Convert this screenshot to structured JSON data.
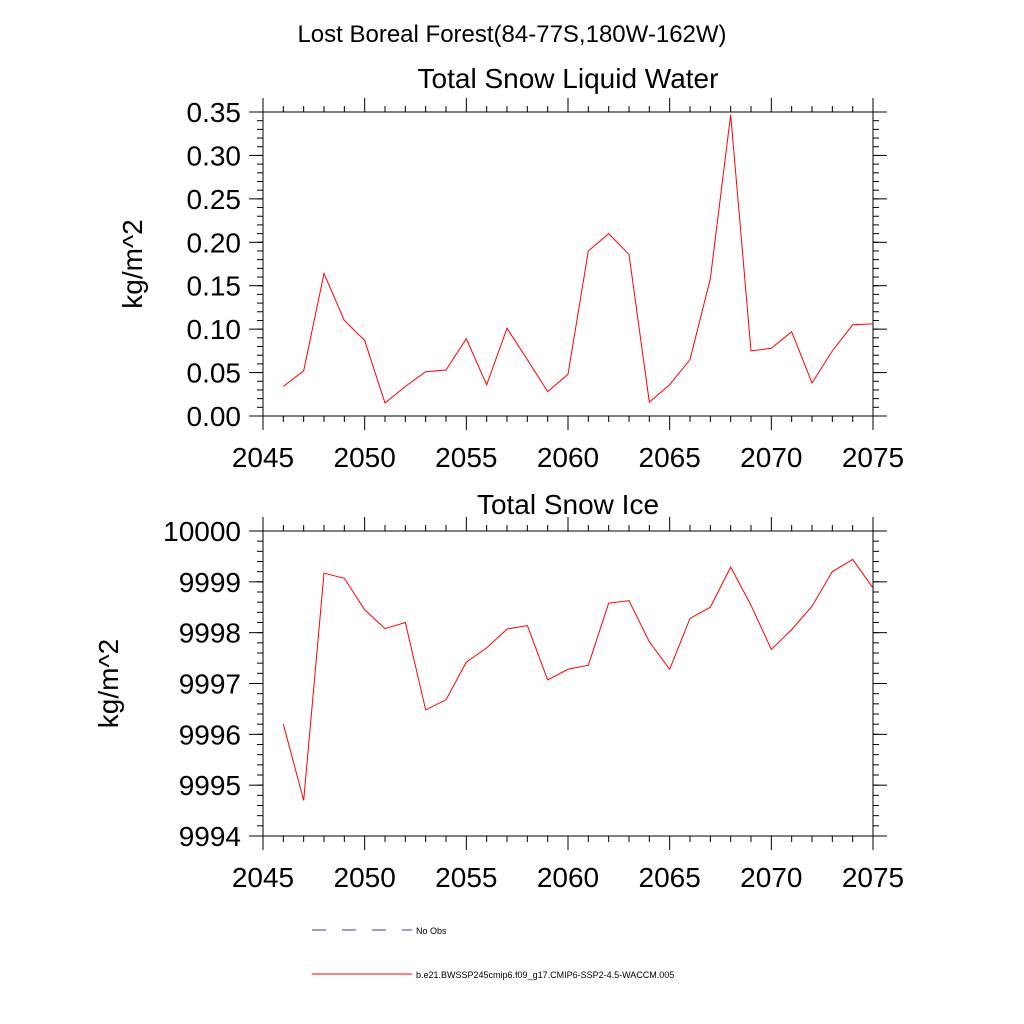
{
  "suptitle": "Lost Boreal Forest(84-77S,180W-162W)",
  "colors": {
    "model": "#ff0000",
    "obs": "#3c3c9c",
    "axis": "#000000"
  },
  "chart_data": [
    {
      "type": "line",
      "title": "Total Snow Liquid Water",
      "xlabel": "",
      "ylabel": "kg/m^2",
      "xlim": [
        2045,
        2075
      ],
      "ylim": [
        0,
        0.35
      ],
      "xticks": [
        2045,
        2050,
        2055,
        2060,
        2065,
        2070,
        2075
      ],
      "xtick_labels": [
        "2045",
        "2050",
        "2055",
        "2060",
        "2065",
        "2070",
        "2075"
      ],
      "yticks": [
        0,
        0.05,
        0.1,
        0.15,
        0.2,
        0.25,
        0.3,
        0.35
      ],
      "ytick_labels": [
        "0.00",
        "0.05",
        "0.10",
        "0.15",
        "0.20",
        "0.25",
        "0.30",
        "0.35"
      ],
      "x": [
        2046,
        2047,
        2048,
        2049,
        2050,
        2051,
        2052,
        2053,
        2054,
        2055,
        2056,
        2057,
        2058,
        2059,
        2060,
        2061,
        2062,
        2063,
        2064,
        2065,
        2066,
        2067,
        2068,
        2069,
        2070,
        2071,
        2072,
        2073,
        2074,
        2075
      ],
      "series": [
        {
          "name": "b.e21.BWSSP245cmip6.f09_g17.CMIP6-SSP2-4.5-WACCM.005",
          "values": [
            0.034,
            0.052,
            0.164,
            0.11,
            0.087,
            0.015,
            0.034,
            0.051,
            0.053,
            0.089,
            0.036,
            0.101,
            0.065,
            0.028,
            0.048,
            0.19,
            0.21,
            0.186,
            0.016,
            0.036,
            0.065,
            0.158,
            0.347,
            0.075,
            0.078,
            0.097,
            0.038,
            0.075,
            0.105,
            0.106
          ]
        }
      ]
    },
    {
      "type": "line",
      "title": "Total Snow Ice",
      "xlabel": "",
      "ylabel": "kg/m^2",
      "xlim": [
        2045,
        2075
      ],
      "ylim": [
        9994,
        10000
      ],
      "xticks": [
        2045,
        2050,
        2055,
        2060,
        2065,
        2070,
        2075
      ],
      "xtick_labels": [
        "2045",
        "2050",
        "2055",
        "2060",
        "2065",
        "2070",
        "2075"
      ],
      "yticks": [
        9994,
        9995,
        9996,
        9997,
        9998,
        9999,
        10000
      ],
      "ytick_labels": [
        "9994",
        "9995",
        "9996",
        "9997",
        "9998",
        "9999",
        "10000"
      ],
      "x": [
        2046,
        2047,
        2048,
        2049,
        2050,
        2051,
        2052,
        2053,
        2054,
        2055,
        2056,
        2057,
        2058,
        2059,
        2060,
        2061,
        2062,
        2063,
        2064,
        2065,
        2066,
        2067,
        2068,
        2069,
        2070,
        2071,
        2072,
        2073,
        2074,
        2075
      ],
      "series": [
        {
          "name": "b.e21.BWSSP245cmip6.f09_g17.CMIP6-SSP2-4.5-WACCM.005",
          "values": [
            9996.2,
            9994.7,
            9999.17,
            9999.07,
            9998.45,
            9998.08,
            9998.2,
            9996.48,
            9996.68,
            9997.42,
            9997.7,
            9998.07,
            9998.14,
            9997.07,
            9997.28,
            9997.36,
            9998.58,
            9998.63,
            9997.82,
            9997.28,
            9998.28,
            9998.5,
            9999.29,
            9998.54,
            9997.67,
            9998.06,
            9998.52,
            9999.2,
            9999.44,
            9998.88
          ]
        }
      ]
    }
  ],
  "legend": [
    {
      "label": "No Obs",
      "style": "dashed",
      "color": "#3c3c9c"
    },
    {
      "label": "b.e21.BWSSP245cmip6.f09_g17.CMIP6-SSP2-4.5-WACCM.005",
      "style": "solid",
      "color": "#ff0000"
    }
  ]
}
